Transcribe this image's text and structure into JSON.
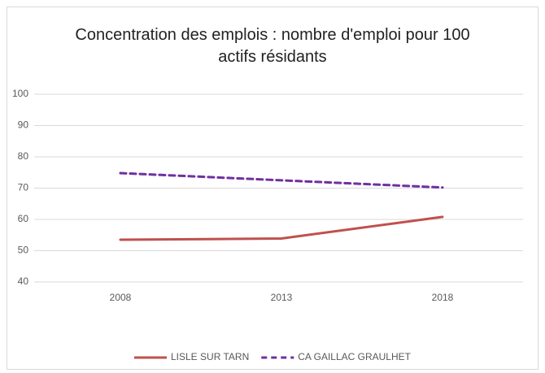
{
  "chart_data": {
    "type": "line",
    "title": "Concentration des emplois : nombre d'emploi pour 100 actifs résidants",
    "categories": [
      "2008",
      "2013",
      "2018"
    ],
    "series": [
      {
        "name": "LISLE SUR TARN",
        "color": "#c0504d",
        "dash": false,
        "values": [
          53.5,
          53.9,
          60.8
        ]
      },
      {
        "name": "CA GAILLAC GRAULHET",
        "color": "#7030a0",
        "dash": true,
        "values": [
          74.8,
          72.5,
          70.2
        ]
      }
    ],
    "ylim": [
      40,
      100
    ],
    "yticks": [
      40,
      50,
      60,
      70,
      80,
      90,
      100
    ],
    "grid": true,
    "legend": "bottom"
  }
}
